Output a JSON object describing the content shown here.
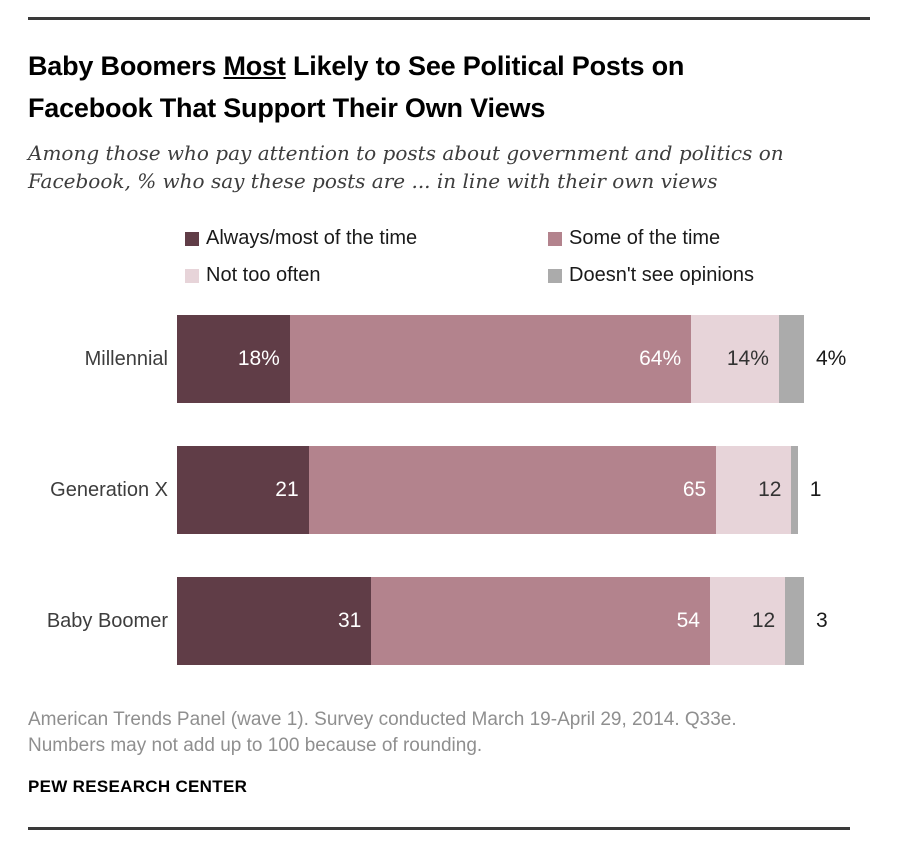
{
  "header": {
    "title_lines": [
      [
        {
          "text": "Baby Boomers ",
          "underline": false
        },
        {
          "text": "Most",
          "underline": true
        },
        {
          "text": " Likely to See Political Posts on",
          "underline": false
        }
      ],
      [
        {
          "text": "Facebook That Support Their Own Views",
          "underline": false
        }
      ]
    ],
    "subtitle_lines": [
      "Among those who pay attention to posts about government and politics on",
      "Facebook, % who say these posts are ... in line with their own views"
    ]
  },
  "legend": {
    "items": [
      {
        "label": "Always/most of the time",
        "color": "#603d47"
      },
      {
        "label": "Some of the time",
        "color": "#b3838d"
      },
      {
        "label": "Not too often",
        "color": "#e7d4d9"
      },
      {
        "label": "Doesn't see opinions",
        "color": "#ababab"
      }
    ]
  },
  "chart_data": {
    "type": "bar",
    "stacked": true,
    "orientation": "horizontal",
    "unit": "percent of respondents",
    "categories": [
      "Millennial",
      "Generation X",
      "Baby Boomer"
    ],
    "series": [
      {
        "name": "Always/most of the time",
        "color": "#603d47",
        "label_color": "#ffffff",
        "label_placement": "inside",
        "values": [
          18,
          21,
          31
        ],
        "labels": [
          "18%",
          "21",
          "31"
        ]
      },
      {
        "name": "Some of the time",
        "color": "#b3838d",
        "label_color": "#ffffff",
        "label_placement": "inside",
        "values": [
          64,
          65,
          54
        ],
        "labels": [
          "64%",
          "65",
          "54"
        ]
      },
      {
        "name": "Not too often",
        "color": "#e7d4d9",
        "label_color": "#333333",
        "label_placement": "inside",
        "values": [
          14,
          12,
          12
        ],
        "labels": [
          "14%",
          "12",
          "12"
        ]
      },
      {
        "name": "Doesn't see opinions",
        "color": "#ababab",
        "label_color": "#1a1a1a",
        "label_placement": "outside",
        "values": [
          4,
          1,
          3
        ],
        "labels": [
          "4%",
          "1",
          "3"
        ]
      }
    ],
    "xlim": [
      0,
      100
    ],
    "grid": false,
    "legend_position": "top"
  },
  "footer": {
    "source_lines": [
      "American Trends Panel (wave 1). Survey conducted March 19-April 29, 2014. Q33e.",
      "Numbers may not add up to 100 because of rounding."
    ],
    "branding": "PEW RESEARCH CENTER"
  }
}
